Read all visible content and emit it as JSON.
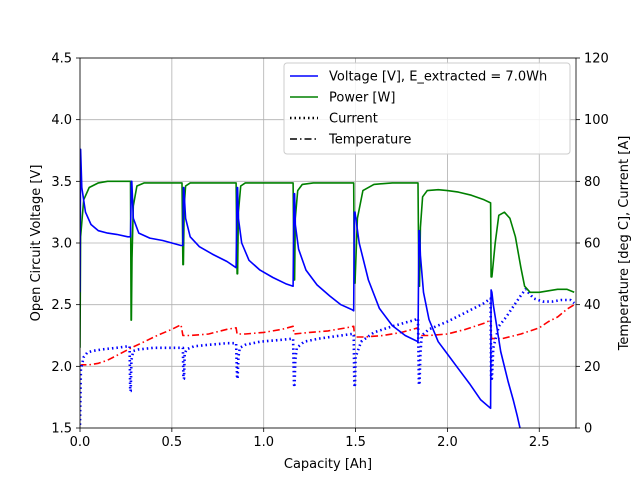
{
  "chart_data": {
    "type": "line",
    "title": "",
    "xlabel": "Capacity [Ah]",
    "ylabel_left": "Open Circuit Voltage [V]",
    "ylabel_right": "Temperature [deg C], Current [A]",
    "xlim": [
      0,
      2.7
    ],
    "ylim_left": [
      1.5,
      4.5
    ],
    "ylim_right": [
      0,
      120
    ],
    "xticks": [
      "0.0",
      "0.5",
      "1.0",
      "1.5",
      "2.0",
      "2.5"
    ],
    "xtick_values": [
      0,
      0.5,
      1.0,
      1.5,
      2.0,
      2.5
    ],
    "yticks_left": [
      "1.5",
      "2.0",
      "2.5",
      "3.0",
      "3.5",
      "4.0",
      "4.5"
    ],
    "ytick_values_left": [
      1.5,
      2.0,
      2.5,
      3.0,
      3.5,
      4.0,
      4.5
    ],
    "yticks_right": [
      "0",
      "20",
      "40",
      "60",
      "80",
      "100",
      "120"
    ],
    "ytick_values_right": [
      0,
      20,
      40,
      60,
      80,
      100,
      120
    ],
    "grid": true,
    "legend_placement": "top-right",
    "legend": [
      {
        "label": "Voltage [V], E_extracted = 7.0Wh",
        "color": "#0000ff",
        "style": "solid"
      },
      {
        "label": "Power [W]",
        "color": "#008000",
        "style": "solid"
      },
      {
        "label": "Current",
        "color": "#000000",
        "style": "dotted"
      },
      {
        "label": "Temperature",
        "color": "#000000",
        "style": "dashdot"
      }
    ],
    "series": [
      {
        "name": "Voltage [V], E_extracted = 7.0Wh",
        "axis": "left",
        "color": "#0000ff",
        "style": "solid",
        "x": [
          0,
          0.003,
          0.01,
          0.03,
          0.06,
          0.1,
          0.15,
          0.2,
          0.26,
          0.275,
          0.28,
          0.282,
          0.29,
          0.32,
          0.38,
          0.45,
          0.55,
          0.56,
          0.563,
          0.565,
          0.575,
          0.6,
          0.65,
          0.72,
          0.8,
          0.85,
          0.855,
          0.858,
          0.862,
          0.88,
          0.92,
          0.98,
          1.05,
          1.12,
          1.16,
          1.165,
          1.168,
          1.172,
          1.19,
          1.23,
          1.29,
          1.36,
          1.42,
          1.48,
          1.49,
          1.493,
          1.497,
          1.52,
          1.57,
          1.63,
          1.7,
          1.77,
          1.84,
          1.845,
          1.848,
          1.853,
          1.87,
          1.9,
          1.95,
          2.0,
          2.06,
          2.12,
          2.18,
          2.235,
          2.238,
          2.242,
          2.25,
          2.29,
          2.33,
          2.36,
          2.38,
          2.395
        ],
        "y": [
          2.6,
          3.76,
          3.45,
          3.25,
          3.15,
          3.1,
          3.08,
          3.07,
          3.05,
          3.05,
          3.5,
          3.5,
          3.2,
          3.08,
          3.04,
          3.02,
          2.98,
          2.98,
          3.45,
          3.45,
          3.2,
          3.05,
          2.97,
          2.91,
          2.85,
          2.8,
          3.45,
          3.45,
          3.2,
          3.0,
          2.86,
          2.78,
          2.72,
          2.67,
          2.65,
          3.4,
          3.4,
          3.15,
          2.95,
          2.78,
          2.66,
          2.57,
          2.5,
          2.46,
          2.45,
          3.25,
          3.25,
          3.0,
          2.7,
          2.47,
          2.33,
          2.25,
          2.2,
          3.1,
          3.1,
          2.9,
          2.6,
          2.38,
          2.2,
          2.1,
          1.98,
          1.86,
          1.73,
          1.66,
          2.62,
          2.6,
          2.5,
          2.12,
          1.88,
          1.72,
          1.6,
          1.5
        ]
      },
      {
        "name": "Power [W]",
        "axis": "right",
        "color": "#008000",
        "style": "solid",
        "x": [
          0,
          0.003,
          0.02,
          0.05,
          0.1,
          0.15,
          0.2,
          0.26,
          0.275,
          0.278,
          0.28,
          0.283,
          0.29,
          0.31,
          0.35,
          0.4,
          0.5,
          0.555,
          0.56,
          0.563,
          0.567,
          0.575,
          0.6,
          0.65,
          0.75,
          0.85,
          0.855,
          0.858,
          0.862,
          0.875,
          0.9,
          0.95,
          1.05,
          1.16,
          1.165,
          1.168,
          1.172,
          1.185,
          1.21,
          1.27,
          1.35,
          1.48,
          1.49,
          1.493,
          1.497,
          1.51,
          1.54,
          1.6,
          1.7,
          1.84,
          1.845,
          1.848,
          1.853,
          1.865,
          1.89,
          1.95,
          2.0,
          2.06,
          2.13,
          2.2,
          2.235,
          2.238,
          2.242,
          2.26,
          2.28,
          2.31,
          2.34,
          2.37,
          2.4,
          2.42,
          2.45,
          2.5,
          2.55,
          2.6,
          2.65,
          2.69
        ],
        "y": [
          26,
          62,
          74,
          78,
          79.5,
          80,
          80,
          80,
          80,
          35,
          35,
          55,
          72,
          78.5,
          79.5,
          79.5,
          79.5,
          79.5,
          53,
          53,
          72,
          78.5,
          79.5,
          79.5,
          79.5,
          79.5,
          50,
          50,
          70,
          78.5,
          79.5,
          79.5,
          79.5,
          79.5,
          48,
          48,
          68,
          77,
          79,
          79.5,
          79.5,
          79.5,
          79.5,
          47,
          47,
          68,
          77,
          79,
          79.5,
          79.5,
          46,
          46,
          65,
          75,
          77,
          77.3,
          77,
          76.5,
          75.5,
          74,
          73,
          49,
          49,
          60,
          69,
          70,
          68,
          62,
          52,
          46,
          44,
          44,
          44.5,
          45,
          45,
          44
        ]
      },
      {
        "name": "Current",
        "axis": "right",
        "color": "#0000ff",
        "style": "dotted",
        "x": [
          0,
          0.005,
          0.02,
          0.04,
          0.07,
          0.12,
          0.2,
          0.26,
          0.27,
          0.273,
          0.276,
          0.28,
          0.29,
          0.32,
          0.4,
          0.5,
          0.555,
          0.56,
          0.563,
          0.566,
          0.57,
          0.58,
          0.62,
          0.7,
          0.8,
          0.85,
          0.855,
          0.858,
          0.862,
          0.87,
          0.9,
          0.98,
          1.08,
          1.16,
          1.165,
          1.168,
          1.172,
          1.18,
          1.22,
          1.3,
          1.42,
          1.48,
          1.49,
          1.493,
          1.497,
          1.5,
          1.53,
          1.6,
          1.7,
          1.82,
          1.84,
          1.845,
          1.848,
          1.853,
          1.86,
          1.9,
          2.0,
          2.1,
          2.2,
          2.235,
          2.238,
          2.242,
          2.25,
          2.28,
          2.32,
          2.36,
          2.4,
          2.425,
          2.43,
          2.44,
          2.47,
          2.52,
          2.57,
          2.62,
          2.67,
          2.69
        ],
        "y": [
          1,
          19,
          23,
          24.5,
          25,
          25.5,
          26,
          26.5,
          26.5,
          12,
          12,
          22,
          25,
          25.5,
          26,
          26,
          26,
          26,
          16,
          16,
          24,
          25.5,
          26.5,
          27,
          27.5,
          27.5,
          16,
          16,
          23,
          26,
          27,
          28,
          28.5,
          29,
          14,
          14,
          22,
          26,
          28,
          29,
          30,
          30.5,
          30.5,
          14,
          14,
          23,
          28,
          31,
          33,
          35,
          35.5,
          14,
          14,
          24,
          30,
          32,
          34.5,
          37.5,
          40.5,
          42,
          16,
          16,
          26,
          33,
          36,
          39.5,
          43,
          45,
          45,
          44,
          42,
          41,
          41,
          41.5,
          41.5,
          40.5
        ]
      },
      {
        "name": "Temperature",
        "axis": "right",
        "color": "#ff0000",
        "style": "dashdot",
        "x": [
          0,
          0.01,
          0.05,
          0.1,
          0.15,
          0.2,
          0.28,
          0.35,
          0.42,
          0.5,
          0.55,
          0.56,
          0.6,
          0.7,
          0.8,
          0.85,
          0.855,
          0.9,
          1.0,
          1.1,
          1.16,
          1.165,
          1.25,
          1.35,
          1.45,
          1.49,
          1.495,
          1.55,
          1.65,
          1.75,
          1.84,
          1.845,
          1.9,
          2.0,
          2.1,
          2.2,
          2.235,
          2.24,
          2.3,
          2.4,
          2.5,
          2.55,
          2.6,
          2.65,
          2.69
        ],
        "y": [
          20,
          20.5,
          20.5,
          21,
          22,
          23.5,
          26,
          28,
          30,
          32,
          33.5,
          30,
          30,
          30.5,
          32,
          32.5,
          30.5,
          30.5,
          31,
          32,
          33,
          30.5,
          31,
          31.5,
          32.5,
          33,
          29.5,
          29.5,
          30,
          31,
          32.5,
          30,
          30,
          30.5,
          32,
          34,
          35,
          29,
          29,
          30.5,
          32.5,
          34.5,
          36,
          38.5,
          40
        ]
      }
    ]
  }
}
